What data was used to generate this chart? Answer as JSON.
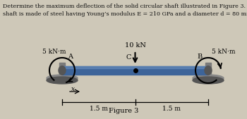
{
  "title_line1": "Determine the maximum deflection of the solid circular shaft illustrated in Figure 3. The",
  "title_line2": "shaft is made of steel having Young’s modulus E = 210 GPa and a diameter d = 80 mm.",
  "figure_label": "Figure 3",
  "force_label": "10 kN",
  "moment_left": "5 kN·m",
  "moment_right": "5 kN·m",
  "point_A": "A",
  "point_B": "B",
  "point_C": "C",
  "dim_left": "1.5 m",
  "dim_right": "1.5 m",
  "x_label": "x",
  "shaft_color": "#3d6499",
  "shaft_highlight": "#6a8fbf",
  "support_body": "#7a7a7a",
  "support_dark": "#555555",
  "support_disk": "#888888",
  "bg_color": "#cec8b8",
  "text_color": "#111111"
}
